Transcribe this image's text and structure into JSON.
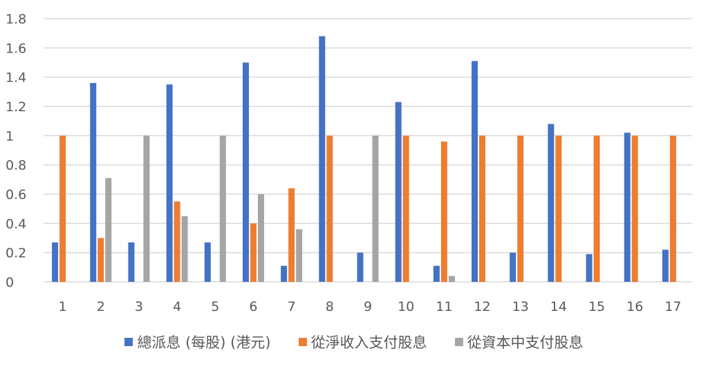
{
  "chart_data": {
    "type": "bar",
    "categories": [
      "1",
      "2",
      "3",
      "4",
      "5",
      "6",
      "7",
      "8",
      "9",
      "10",
      "11",
      "12",
      "13",
      "14",
      "15",
      "16",
      "17"
    ],
    "series": [
      {
        "name": "總派息 (每股) (港元)",
        "color": "#4472C4",
        "values": [
          0.27,
          1.36,
          0.27,
          1.35,
          0.27,
          1.5,
          0.11,
          1.68,
          0.2,
          1.23,
          0.11,
          1.51,
          0.2,
          1.08,
          0.19,
          1.02,
          0.22
        ]
      },
      {
        "name": "從淨收入支付股息",
        "color": "#ED7D31",
        "values": [
          1.0,
          0.3,
          0,
          0.55,
          0,
          0.4,
          0.64,
          1.0,
          0,
          1.0,
          0.96,
          1.0,
          1.0,
          1.0,
          1.0,
          1.0,
          1.0
        ]
      },
      {
        "name": "從資本中支付股息",
        "color": "#A5A5A5",
        "values": [
          0,
          0.71,
          1.0,
          0.45,
          1.0,
          0.6,
          0.36,
          0,
          1.0,
          0,
          0.04,
          0,
          0,
          0,
          0,
          0,
          0
        ]
      }
    ],
    "y_ticks": [
      "0",
      "0.2",
      "0.4",
      "0.6",
      "0.8",
      "1",
      "1.2",
      "1.4",
      "1.6",
      "1.8"
    ],
    "ylim": [
      0,
      1.8
    ],
    "grid": true,
    "legend_position": "bottom"
  }
}
